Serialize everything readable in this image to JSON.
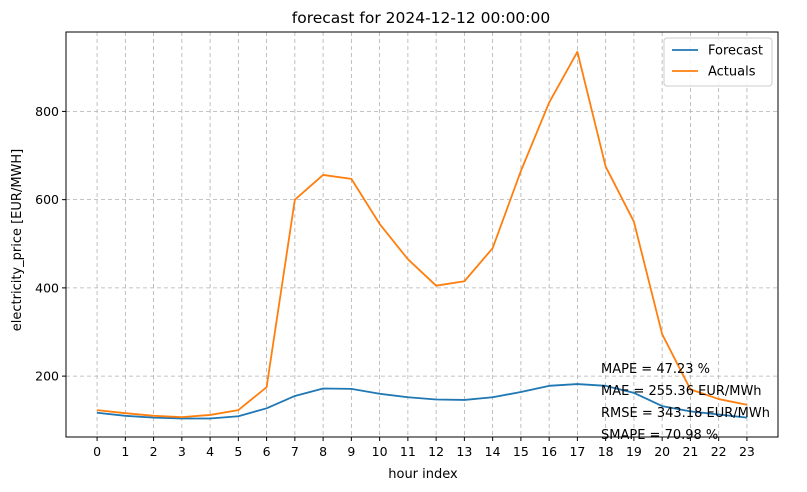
{
  "chart_data": {
    "type": "line",
    "title": "forecast for 2024-12-12 00:00:00",
    "xlabel": "hour index",
    "ylabel": "electricity_price [EUR/MWH]",
    "x": [
      0,
      1,
      2,
      3,
      4,
      5,
      6,
      7,
      8,
      9,
      10,
      11,
      12,
      13,
      14,
      15,
      16,
      17,
      18,
      19,
      20,
      21,
      22,
      23
    ],
    "x_tick_labels": [
      "0",
      "1",
      "2",
      "3",
      "4",
      "5",
      "6",
      "7",
      "8",
      "9",
      "10",
      "11",
      "12",
      "13",
      "14",
      "15",
      "16",
      "17",
      "18",
      "19",
      "20",
      "21",
      "22",
      "23"
    ],
    "y_ticks": [
      200,
      400,
      600,
      800
    ],
    "y_tick_labels": [
      "200",
      "400",
      "600",
      "800"
    ],
    "xlim": [
      -1.1,
      24.1
    ],
    "ylim": [
      62,
      980
    ],
    "grid": true,
    "legend_position": "top-right",
    "series": [
      {
        "name": "Forecast",
        "color": "#1f77b4",
        "values": [
          117,
          110,
          106,
          104,
          104,
          109,
          127,
          155,
          172,
          171,
          160,
          152,
          147,
          146,
          152,
          164,
          178,
          182,
          178,
          162,
          132,
          120,
          113,
          106
        ]
      },
      {
        "name": "Actuals",
        "color": "#ff7f0e",
        "values": [
          123,
          116,
          110,
          107,
          112,
          123,
          175,
          600,
          656,
          647,
          545,
          465,
          405,
          415,
          490,
          665,
          820,
          935,
          675,
          550,
          295,
          170,
          148,
          135
        ]
      }
    ],
    "annotations": [
      "MAPE = 47.23 %",
      "MAE = 255.36 EUR/MWh",
      "RMSE = 343.18 EUR/MWh",
      "SMAPE = 70.98 %"
    ]
  }
}
